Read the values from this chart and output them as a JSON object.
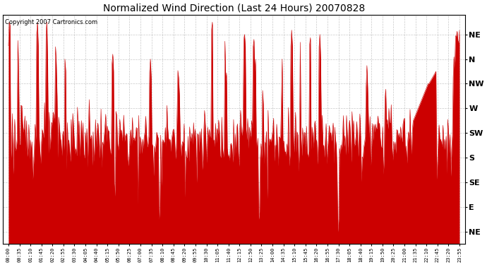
{
  "title": "Normalized Wind Direction (Last 24 Hours) 20070828",
  "copyright_text": "Copyright 2007 Cartronics.com",
  "line_color": "#CC0000",
  "background_color": "#FFFFFF",
  "plot_bg_color": "#FFFFFF",
  "grid_color": "#BBBBBB",
  "ytick_labels": [
    "NE",
    "N",
    "NW",
    "W",
    "SW",
    "S",
    "SE",
    "E",
    "NE"
  ],
  "ytick_values": [
    9,
    8,
    7,
    6,
    5,
    4,
    3,
    2,
    1
  ],
  "ylim": [
    0.5,
    9.8
  ],
  "x_labels": [
    "00:00",
    "00:35",
    "01:10",
    "01:45",
    "02:20",
    "02:55",
    "03:30",
    "04:05",
    "04:40",
    "05:15",
    "05:50",
    "06:25",
    "07:00",
    "07:35",
    "08:10",
    "08:45",
    "09:20",
    "09:55",
    "10:30",
    "11:05",
    "11:40",
    "12:15",
    "12:50",
    "13:25",
    "14:00",
    "14:35",
    "15:10",
    "15:45",
    "16:20",
    "16:55",
    "17:30",
    "18:05",
    "18:40",
    "19:15",
    "19:50",
    "20:25",
    "21:00",
    "21:35",
    "22:10",
    "22:45",
    "23:20",
    "23:55"
  ],
  "figsize": [
    6.9,
    3.75
  ],
  "dpi": 100
}
